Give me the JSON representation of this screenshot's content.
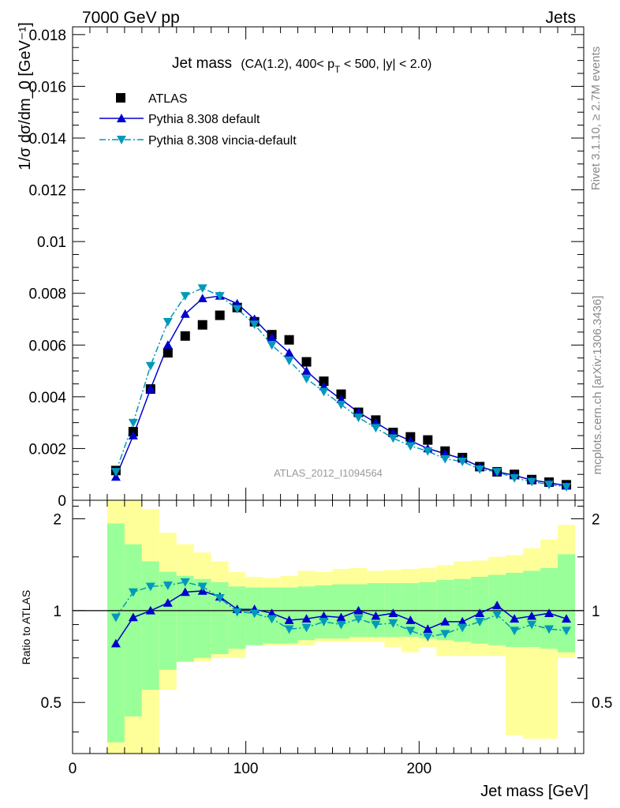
{
  "header": {
    "left": "7000 GeV pp",
    "right": "Jets"
  },
  "side_text": {
    "rivet": "Rivet 3.1.10, ≥ 2.7M events",
    "site": "mcplots.cern.ch [arXiv:1306.3436]"
  },
  "chart_data": [
    {
      "type": "scatter",
      "panel": "main",
      "title": "Jet mass",
      "subtitle": "(CA(1.2), 400< p_T < 500, |y| < 2.0)",
      "ylabel": "1/σ dσ/dm_0 [GeV⁻¹]",
      "watermark": "ATLAS_2012_I1094564",
      "xlim": [
        0,
        295
      ],
      "ylim": [
        0,
        0.0183
      ],
      "yticks": [
        0,
        0.002,
        0.004,
        0.006,
        0.008,
        0.01,
        0.012,
        0.014,
        0.016,
        0.018
      ],
      "ytick_labels": [
        "0",
        "0.002",
        "0.004",
        "0.006",
        "0.008",
        "0.01",
        "0.012",
        "0.014",
        "0.016",
        "0.018"
      ],
      "x": [
        25,
        35,
        45,
        55,
        65,
        75,
        85,
        95,
        105,
        115,
        125,
        135,
        145,
        155,
        165,
        175,
        185,
        195,
        205,
        215,
        225,
        235,
        245,
        255,
        265,
        275,
        285
      ],
      "legend_position": "top-left",
      "series": [
        {
          "name": "ATLAS",
          "marker": "square",
          "color": "#000000",
          "values": [
            0.00115,
            0.00265,
            0.0043,
            0.0057,
            0.00635,
            0.00678,
            0.00715,
            0.00745,
            0.0069,
            0.0064,
            0.0062,
            0.00535,
            0.0046,
            0.0041,
            0.0034,
            0.0031,
            0.00262,
            0.00245,
            0.00233,
            0.0019,
            0.00165,
            0.0013,
            0.0011,
            0.001,
            0.0008,
            0.0007,
            0.0006
          ]
        },
        {
          "name": "Pythia 8.308 default",
          "marker": "triangle-up",
          "line": "solid",
          "color": "#0000cc",
          "values": [
            0.0009,
            0.0025,
            0.0043,
            0.006,
            0.0072,
            0.0078,
            0.0079,
            0.0076,
            0.007,
            0.0063,
            0.0057,
            0.005,
            0.0044,
            0.0039,
            0.0034,
            0.003,
            0.0026,
            0.0023,
            0.002,
            0.0018,
            0.0016,
            0.0013,
            0.0011,
            0.00096,
            0.00078,
            0.00068,
            0.00056
          ]
        },
        {
          "name": "Pythia 8.308 vincia-default",
          "marker": "triangle-down",
          "line": "dashdot",
          "color": "#0099bb",
          "values": [
            0.0011,
            0.003,
            0.0052,
            0.0069,
            0.0079,
            0.0082,
            0.0079,
            0.0074,
            0.0068,
            0.006,
            0.0054,
            0.0047,
            0.0042,
            0.0037,
            0.0032,
            0.0028,
            0.0024,
            0.0021,
            0.0019,
            0.0016,
            0.0015,
            0.0012,
            0.0011,
            0.00086,
            0.00072,
            0.00061,
            0.00052
          ]
        }
      ]
    },
    {
      "type": "line",
      "panel": "ratio",
      "ylabel": "Ratio to ATLAS",
      "xlabel": "Jet mass [GeV]",
      "xlim": [
        0,
        295
      ],
      "ylim": [
        0.34,
        2.3
      ],
      "xticks": [
        0,
        100,
        200
      ],
      "xtick_labels": [
        "0",
        "100",
        "200"
      ],
      "yticks": [
        0.5,
        1,
        2
      ],
      "ytick_labels": [
        "0.5",
        "1",
        "2"
      ],
      "bin_edges": [
        20,
        30,
        40,
        50,
        60,
        70,
        80,
        90,
        100,
        110,
        120,
        130,
        140,
        150,
        160,
        170,
        180,
        190,
        200,
        210,
        220,
        230,
        240,
        250,
        260,
        270,
        280,
        290
      ],
      "band_stat": {
        "color": "#99ff99",
        "lo": [
          0.37,
          0.45,
          0.55,
          0.64,
          0.68,
          0.7,
          0.72,
          0.75,
          0.77,
          0.78,
          0.78,
          0.8,
          0.81,
          0.81,
          0.82,
          0.82,
          0.82,
          0.82,
          0.81,
          0.8,
          0.79,
          0.78,
          0.77,
          0.76,
          0.76,
          0.75,
          0.73
        ],
        "hi": [
          1.93,
          1.65,
          1.45,
          1.34,
          1.3,
          1.27,
          1.24,
          1.2,
          1.19,
          1.19,
          1.19,
          1.2,
          1.21,
          1.22,
          1.22,
          1.23,
          1.23,
          1.23,
          1.24,
          1.26,
          1.27,
          1.29,
          1.31,
          1.33,
          1.35,
          1.38,
          1.53
        ]
      },
      "band_total": {
        "color": "#ffff99",
        "lo": [
          0.2,
          0.2,
          0.2,
          0.55,
          0.68,
          0.68,
          0.7,
          0.7,
          0.82,
          0.77,
          0.77,
          0.77,
          0.79,
          0.79,
          0.79,
          0.79,
          0.76,
          0.73,
          0.76,
          0.71,
          0.71,
          0.71,
          0.71,
          0.39,
          0.38,
          0.38,
          0.7
        ],
        "hi": [
          2.5,
          2.4,
          2.15,
          1.8,
          1.65,
          1.55,
          1.45,
          1.34,
          1.29,
          1.28,
          1.3,
          1.35,
          1.34,
          1.37,
          1.38,
          1.35,
          1.36,
          1.37,
          1.38,
          1.41,
          1.45,
          1.46,
          1.5,
          1.52,
          1.6,
          1.71,
          1.91
        ]
      },
      "reference_line": 1,
      "x": [
        25,
        35,
        45,
        55,
        65,
        75,
        85,
        95,
        105,
        115,
        125,
        135,
        145,
        155,
        165,
        175,
        185,
        195,
        205,
        215,
        225,
        235,
        245,
        255,
        265,
        275,
        285
      ],
      "series": [
        {
          "name": "Pythia 8.308 default",
          "marker": "triangle-up",
          "line": "solid",
          "color": "#0000cc",
          "values": [
            0.78,
            0.95,
            1.0,
            1.06,
            1.15,
            1.16,
            1.11,
            1.01,
            1.01,
            0.98,
            0.93,
            0.94,
            0.96,
            0.95,
            1.0,
            0.96,
            0.98,
            0.93,
            0.87,
            0.92,
            0.92,
            0.98,
            1.04,
            0.94,
            0.96,
            0.98,
            0.94
          ]
        },
        {
          "name": "Pythia 8.308 vincia-default",
          "marker": "triangle-down",
          "line": "dashdot",
          "color": "#0099bb",
          "values": [
            0.95,
            1.15,
            1.2,
            1.21,
            1.24,
            1.2,
            1.1,
            0.99,
            0.98,
            0.94,
            0.87,
            0.88,
            0.92,
            0.9,
            0.94,
            0.9,
            0.91,
            0.86,
            0.82,
            0.84,
            0.88,
            0.92,
            0.97,
            0.86,
            0.9,
            0.87,
            0.86
          ]
        }
      ]
    }
  ]
}
